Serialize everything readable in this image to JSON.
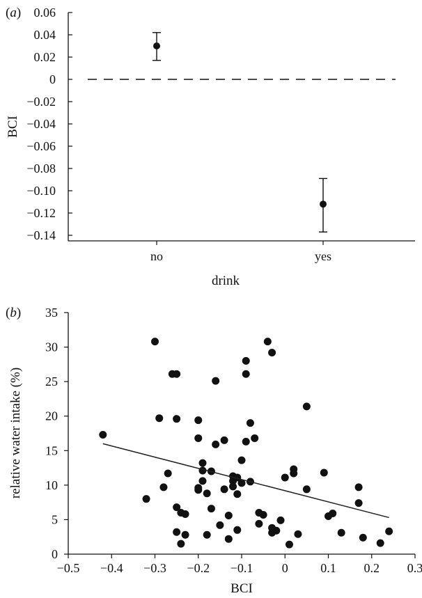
{
  "chart_data": [
    {
      "panel_label": "(a)",
      "type": "scatter",
      "xlabel": "drink",
      "ylabel": "BCI",
      "categories": [
        "no",
        "yes"
      ],
      "ylim": [
        -0.14,
        0.06
      ],
      "yticks": [
        0.06,
        0.04,
        0.02,
        0,
        -0.02,
        -0.04,
        -0.06,
        -0.08,
        -0.1,
        -0.12,
        -0.14
      ],
      "ytick_labels": [
        "0.06",
        "0.04",
        "0.02",
        "0",
        "−0.02",
        "−0.04",
        "−0.06",
        "−0.08",
        "−0.10",
        "−0.12",
        "−0.14"
      ],
      "points": [
        {
          "category": "no",
          "mean": 0.03,
          "err_low": 0.017,
          "err_high": 0.042
        },
        {
          "category": "yes",
          "mean": -0.112,
          "err_low": -0.137,
          "err_high": -0.089
        }
      ],
      "reference_line": {
        "y": 0,
        "style": "dashed"
      },
      "grid": false
    },
    {
      "panel_label": "(b)",
      "type": "scatter",
      "xlabel": "BCI",
      "ylabel": "relative water intake (%)",
      "xlim": [
        -0.5,
        0.3
      ],
      "ylim": [
        0,
        35
      ],
      "xticks": [
        -0.5,
        -0.4,
        -0.3,
        -0.2,
        -0.1,
        0,
        0.1,
        0.2,
        0.3
      ],
      "xtick_labels": [
        "−0.5",
        "−0.4",
        "−0.3",
        "−0.2",
        "−0.1",
        "0",
        "0.1",
        "0.2",
        "0.3"
      ],
      "yticks": [
        0,
        5,
        10,
        15,
        20,
        25,
        30,
        35
      ],
      "ytick_labels": [
        "0",
        "5",
        "10",
        "15",
        "20",
        "25",
        "30",
        "35"
      ],
      "points": [
        [
          -0.42,
          17.3
        ],
        [
          -0.32,
          8.0
        ],
        [
          -0.3,
          30.8
        ],
        [
          -0.29,
          19.7
        ],
        [
          -0.28,
          9.7
        ],
        [
          -0.27,
          11.7
        ],
        [
          -0.26,
          26.1
        ],
        [
          -0.25,
          26.1
        ],
        [
          -0.25,
          19.6
        ],
        [
          -0.25,
          6.8
        ],
        [
          -0.25,
          3.2
        ],
        [
          -0.24,
          6.0
        ],
        [
          -0.24,
          1.5
        ],
        [
          -0.23,
          5.8
        ],
        [
          -0.23,
          2.8
        ],
        [
          -0.2,
          19.4
        ],
        [
          -0.2,
          16.8
        ],
        [
          -0.2,
          9.6
        ],
        [
          -0.2,
          9.3
        ],
        [
          -0.19,
          13.2
        ],
        [
          -0.19,
          12.1
        ],
        [
          -0.19,
          10.6
        ],
        [
          -0.18,
          8.8
        ],
        [
          -0.18,
          2.8
        ],
        [
          -0.17,
          12.0
        ],
        [
          -0.17,
          6.6
        ],
        [
          -0.16,
          25.1
        ],
        [
          -0.16,
          15.9
        ],
        [
          -0.15,
          4.2
        ],
        [
          -0.14,
          16.5
        ],
        [
          -0.14,
          9.4
        ],
        [
          -0.13,
          5.6
        ],
        [
          -0.13,
          2.2
        ],
        [
          -0.12,
          11.3
        ],
        [
          -0.12,
          10.6
        ],
        [
          -0.12,
          9.8
        ],
        [
          -0.11,
          11.1
        ],
        [
          -0.11,
          8.7
        ],
        [
          -0.11,
          3.5
        ],
        [
          -0.1,
          13.6
        ],
        [
          -0.1,
          10.3
        ],
        [
          -0.09,
          28.0
        ],
        [
          -0.09,
          26.1
        ],
        [
          -0.09,
          16.3
        ],
        [
          -0.08,
          19.0
        ],
        [
          -0.08,
          10.5
        ],
        [
          -0.07,
          16.8
        ],
        [
          -0.06,
          4.4
        ],
        [
          -0.06,
          6.0
        ],
        [
          -0.05,
          5.7
        ],
        [
          -0.04,
          30.8
        ],
        [
          -0.03,
          29.2
        ],
        [
          -0.03,
          3.1
        ],
        [
          -0.03,
          3.8
        ],
        [
          -0.02,
          3.4
        ],
        [
          -0.01,
          4.9
        ],
        [
          0.0,
          11.1
        ],
        [
          0.01,
          1.4
        ],
        [
          0.02,
          12.3
        ],
        [
          0.02,
          11.7
        ],
        [
          0.03,
          2.9
        ],
        [
          0.05,
          21.4
        ],
        [
          0.05,
          9.4
        ],
        [
          0.09,
          11.8
        ],
        [
          0.1,
          5.5
        ],
        [
          0.11,
          5.9
        ],
        [
          0.13,
          3.1
        ],
        [
          0.17,
          9.7
        ],
        [
          0.17,
          7.4
        ],
        [
          0.18,
          2.4
        ],
        [
          0.22,
          1.6
        ],
        [
          0.24,
          3.3
        ]
      ],
      "fit_line": {
        "x": [
          -0.42,
          0.24
        ],
        "y": [
          16.0,
          5.3
        ]
      },
      "grid": false
    }
  ]
}
